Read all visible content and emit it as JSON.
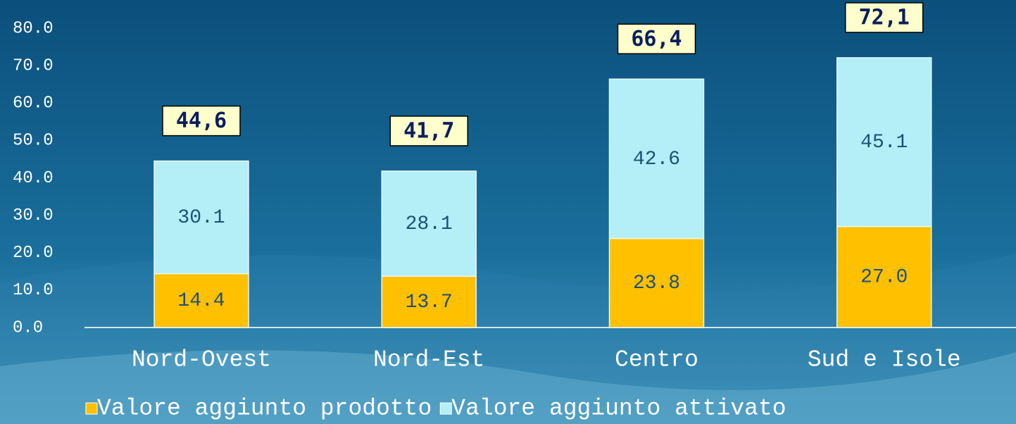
{
  "chart_data": {
    "type": "stacked-bar",
    "categories": [
      "Nord-Ovest",
      "Nord-Est",
      "Centro",
      "Sud e Isole"
    ],
    "series": [
      {
        "name": "Valore aggiunto prodotto",
        "color": "#ffc000",
        "values": [
          14.4,
          13.7,
          23.8,
          27.0
        ],
        "value_labels": [
          "14.4",
          "13.7",
          "23.8",
          "27.0"
        ]
      },
      {
        "name": "Valore aggiunto attivato",
        "color": "#b4eef6",
        "values": [
          30.1,
          28.1,
          42.6,
          45.1
        ],
        "value_labels": [
          "30.1",
          "28.1",
          "42.6",
          "45.1"
        ]
      }
    ],
    "annotations": [
      "44,6",
      "41,7",
      "66,4",
      "72,1"
    ],
    "ylim": [
      0,
      80
    ],
    "yticks": [
      {
        "value": 0,
        "label": "0.0"
      },
      {
        "value": 10,
        "label": "10.0"
      },
      {
        "value": 20,
        "label": "20.0"
      },
      {
        "value": 30,
        "label": "30.0"
      },
      {
        "value": 40,
        "label": "40.0"
      },
      {
        "value": 50,
        "label": "50.0"
      },
      {
        "value": 60,
        "label": "60.0"
      },
      {
        "value": 70,
        "label": "70.0"
      },
      {
        "value": 80,
        "label": "80.0"
      }
    ],
    "legend": "bottom"
  }
}
